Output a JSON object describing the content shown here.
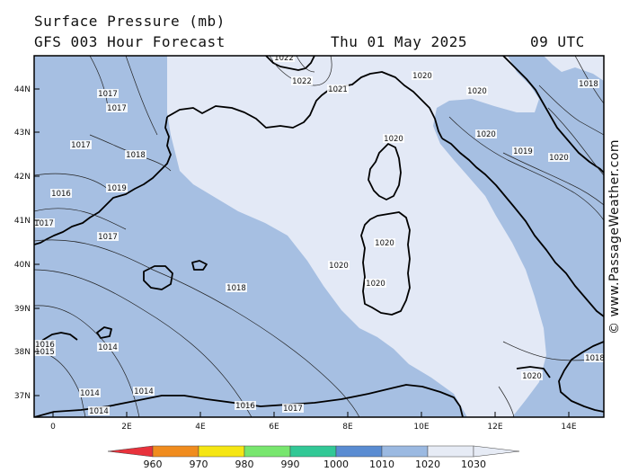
{
  "header": {
    "title": "Surface Pressure (mb)",
    "forecast": "GFS 003 Hour Forecast",
    "date": "Thu 01 May 2025",
    "time": "09 UTC"
  },
  "credit": "© www.PassageWeather.com",
  "axes": {
    "lat_labels": [
      "44N",
      "43N",
      "42N",
      "41N",
      "40N",
      "39N",
      "38N",
      "37N"
    ],
    "lon_labels": [
      "0",
      "2E",
      "4E",
      "6E",
      "8E",
      "10E",
      "12E",
      "14E"
    ]
  },
  "isobar_labels": [
    "1022",
    "1022",
    "1021",
    "1020",
    "1020",
    "1020",
    "1020",
    "1019",
    "1020",
    "1018",
    "1017",
    "1017",
    "1017",
    "1018",
    "1016",
    "1019",
    "1017",
    "1017",
    "1020",
    "1018",
    "1020",
    "1020",
    "1016",
    "1015",
    "1014",
    "1014",
    "1014",
    "1014",
    "1016",
    "1017",
    "1020",
    "1018"
  ],
  "legend": {
    "values": [
      "960",
      "970",
      "980",
      "990",
      "1000",
      "1010",
      "1020",
      "1030"
    ],
    "colors": [
      "#e8323c",
      "#f08c1e",
      "#f5e614",
      "#78e66e",
      "#32c896",
      "#5a8cd2",
      "#9bb9e1",
      "#e6ebf5"
    ]
  },
  "colors": {
    "sea_low": "#a6bfe2",
    "sea_high": "#e3e9f6",
    "coast": "#000000"
  }
}
